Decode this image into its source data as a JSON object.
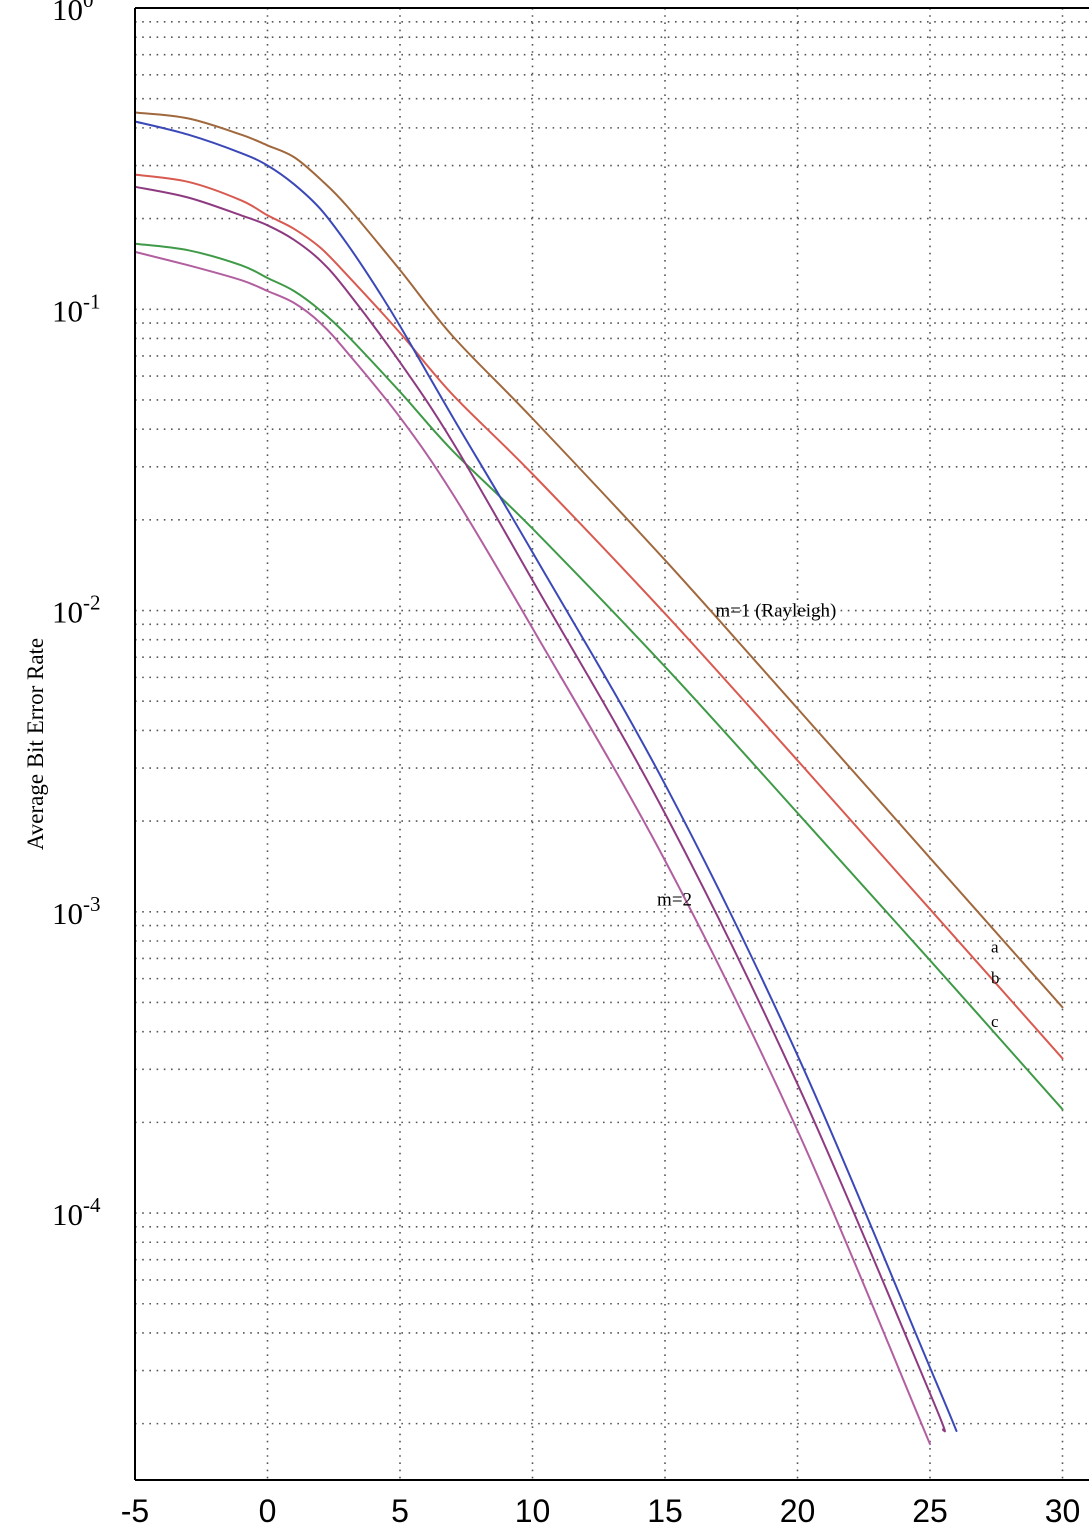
{
  "chart_data": {
    "type": "line",
    "title": "",
    "xlabel": "",
    "ylabel": "Average Bit Error Rate",
    "xlim": [
      -5,
      30
    ],
    "ylim": [
      1.3e-05,
      1
    ],
    "y_scale": "log",
    "grid": true,
    "x_ticks": [
      -5,
      0,
      5,
      10,
      15,
      20,
      25,
      30
    ],
    "x_tick_labels": [
      "-5",
      "0",
      "5",
      "10",
      "15",
      "20",
      "25",
      "30"
    ],
    "y_ticks": [
      {
        "value": 1,
        "base": "10",
        "exp": "0"
      },
      {
        "value": 0.1,
        "base": "10",
        "exp": "-1"
      },
      {
        "value": 0.01,
        "base": "10",
        "exp": "-2"
      },
      {
        "value": 0.001,
        "base": "10",
        "exp": "-3"
      },
      {
        "value": 0.0001,
        "base": "10",
        "exp": "-4"
      }
    ],
    "annotations": [
      {
        "text": "m=1 (Rayleigh)",
        "x": 16.9,
        "y": 0.01
      },
      {
        "text": "m=2",
        "x": 14.7,
        "y": 0.0011
      }
    ],
    "curve_labels": [
      {
        "text": "a",
        "x": 27.3,
        "y": 0.00076
      },
      {
        "text": "b",
        "x": 27.3,
        "y": 0.0006
      },
      {
        "text": "c",
        "x": 27.3,
        "y": 0.00043
      }
    ],
    "series": [
      {
        "color": "#a0683c",
        "x": [
          -5,
          -3,
          -1,
          0,
          1,
          2,
          3,
          5,
          7,
          10,
          15,
          20,
          25,
          30
        ],
        "y": [
          0.45,
          0.43,
          0.38,
          0.35,
          0.32,
          0.27,
          0.22,
          0.135,
          0.0812,
          0.0434,
          0.0147,
          0.00473,
          0.00151,
          0.000482
        ]
      },
      {
        "color": "#d85a50",
        "x": [
          -5,
          -3,
          -1,
          0,
          1,
          2,
          3,
          5,
          7,
          10,
          15,
          20,
          25,
          30
        ],
        "y": [
          0.28,
          0.265,
          0.23,
          0.205,
          0.185,
          0.16,
          0.13,
          0.0835,
          0.0519,
          0.0284,
          0.00977,
          0.00318,
          0.00102,
          0.000326
        ]
      },
      {
        "color": "#3f9a48",
        "x": [
          -5,
          -3,
          -1,
          0,
          1,
          2,
          3,
          5,
          7,
          10,
          15,
          20,
          25,
          30
        ],
        "y": [
          0.165,
          0.157,
          0.14,
          0.127,
          0.115,
          0.099,
          0.082,
          0.0532,
          0.0338,
          0.0187,
          0.00651,
          0.00213,
          0.00069,
          0.000221
        ]
      },
      {
        "color": "#3b48b8",
        "x": [
          -5,
          -3,
          -1,
          0,
          1,
          2,
          3,
          4,
          5,
          7,
          10,
          15,
          20,
          25,
          26
        ],
        "y": [
          0.42,
          0.38,
          0.33,
          0.3,
          0.26,
          0.215,
          0.165,
          0.122,
          0.088,
          0.0437,
          0.0156,
          0.00265,
          0.000334,
          3.07e-05,
          1.89e-05
        ]
      },
      {
        "color": "#8e3a80",
        "x": [
          -5,
          -3,
          -1,
          0,
          1,
          2,
          3,
          5,
          7,
          10,
          15,
          20,
          25,
          25.5
        ],
        "y": [
          0.255,
          0.235,
          0.205,
          0.19,
          0.17,
          0.145,
          0.115,
          0.0667,
          0.0361,
          0.0126,
          0.00212,
          0.000268,
          2.52e-05,
          1.9e-05
        ]
      },
      {
        "color": "#b25fa0",
        "x": [
          -5,
          -3,
          -1,
          0,
          1,
          2,
          3,
          5,
          7,
          10,
          15,
          20,
          25
        ],
        "y": [
          0.155,
          0.14,
          0.125,
          0.115,
          0.105,
          0.09,
          0.072,
          0.0438,
          0.0243,
          0.00873,
          0.00148,
          0.000188,
          1.71e-05
        ]
      }
    ]
  }
}
